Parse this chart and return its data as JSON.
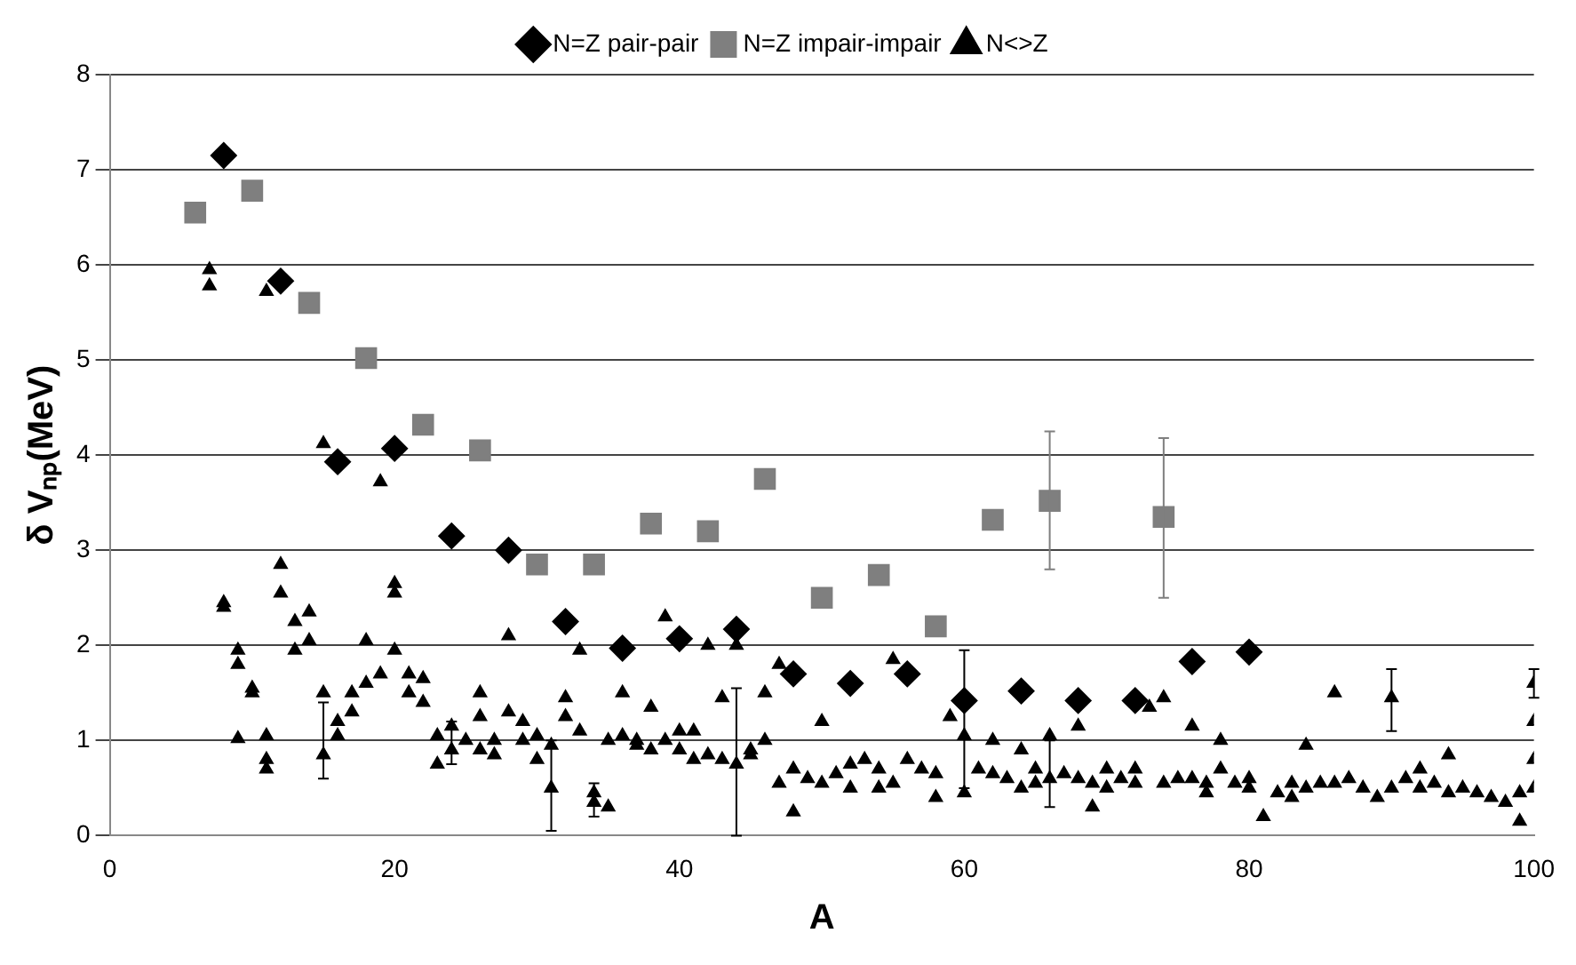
{
  "chart_data": {
    "type": "scatter",
    "xlabel": "A",
    "ylabel": "δ Vₙₚ(MeV)",
    "xlim": [
      0,
      100
    ],
    "xticks": [
      0,
      20,
      40,
      60,
      80,
      100
    ],
    "ylim": [
      0,
      8
    ],
    "yticks": [
      0,
      1,
      2,
      3,
      4,
      5,
      6,
      7,
      8
    ],
    "grid": "y",
    "legend": "top",
    "series": [
      {
        "name": "N=Z pair-pair",
        "color": "#000000",
        "marker": "diamond",
        "x": [
          8,
          12,
          16,
          20,
          24,
          28,
          32,
          36,
          40,
          44,
          48,
          52,
          56,
          60,
          64,
          68,
          72,
          76,
          80
        ],
        "values": [
          7.15,
          5.83,
          3.93,
          4.07,
          3.15,
          3.0,
          2.25,
          1.97,
          2.07,
          2.17,
          1.7,
          1.6,
          1.7,
          1.42,
          1.52,
          1.42,
          1.42,
          1.83,
          1.93
        ]
      },
      {
        "name": "N=Z impair-impair",
        "color": "#7f7f7f",
        "marker": "square",
        "x": [
          6,
          10,
          14,
          18,
          22,
          26,
          30,
          34,
          38,
          42,
          46,
          50,
          54,
          58,
          62,
          66,
          74
        ],
        "values": [
          6.55,
          6.78,
          5.6,
          5.02,
          4.32,
          4.05,
          2.85,
          2.85,
          3.28,
          3.2,
          3.75,
          2.5,
          2.74,
          2.2,
          3.32,
          3.52,
          3.35
        ],
        "errors": [
          null,
          null,
          null,
          null,
          null,
          null,
          null,
          null,
          null,
          null,
          null,
          null,
          null,
          null,
          null,
          [
            2.8,
            4.25
          ],
          [
            2.5,
            4.18
          ]
        ]
      },
      {
        "name": "N<>Z",
        "color": "#000000",
        "marker": "triangle",
        "x": [
          7,
          7,
          8,
          8,
          9,
          9,
          9,
          10,
          10,
          11,
          11,
          11,
          11,
          12,
          12,
          13,
          13,
          14,
          14,
          15,
          15,
          15,
          16,
          16,
          17,
          17,
          18,
          18,
          19,
          19,
          20,
          20,
          20,
          21,
          21,
          22,
          22,
          23,
          23,
          24,
          24,
          25,
          26,
          26,
          26,
          27,
          27,
          28,
          28,
          29,
          29,
          30,
          30,
          31,
          31,
          32,
          32,
          33,
          33,
          34,
          34,
          35,
          35,
          36,
          36,
          37,
          37,
          38,
          38,
          39,
          39,
          40,
          40,
          41,
          41,
          42,
          42,
          43,
          43,
          44,
          44,
          45,
          45,
          46,
          46,
          47,
          47,
          48,
          48,
          50,
          50,
          52,
          52,
          54,
          54,
          55,
          56,
          58,
          58,
          59,
          60,
          60,
          62,
          62,
          64,
          64,
          66,
          66,
          68,
          68,
          70,
          70,
          72,
          72,
          73,
          74,
          74,
          76,
          76,
          78,
          78,
          80,
          80,
          81,
          82,
          84,
          84,
          86,
          86,
          88,
          89,
          90,
          90,
          92,
          92,
          94,
          94,
          96,
          98,
          99,
          100,
          100,
          100,
          100,
          49,
          51,
          53,
          55,
          57,
          61,
          63,
          65,
          67,
          69,
          71,
          75,
          77,
          79,
          83,
          85,
          87,
          91,
          93,
          95,
          97,
          99,
          65,
          69,
          77,
          83
        ],
        "values": [
          5.95,
          5.78,
          2.45,
          2.4,
          1.95,
          1.8,
          1.02,
          1.55,
          1.5,
          5.72,
          1.05,
          0.8,
          0.7,
          2.85,
          2.55,
          2.25,
          1.95,
          2.35,
          2.05,
          4.12,
          1.5,
          0.85,
          1.2,
          1.05,
          1.5,
          1.3,
          2.05,
          1.6,
          3.72,
          1.7,
          2.65,
          2.55,
          1.95,
          1.7,
          1.5,
          1.65,
          1.4,
          1.05,
          0.75,
          1.15,
          0.9,
          1.0,
          1.5,
          1.25,
          0.9,
          1.0,
          0.85,
          2.1,
          1.3,
          1.2,
          1.0,
          1.05,
          0.8,
          0.5,
          0.95,
          1.45,
          1.25,
          1.1,
          1.95,
          0.35,
          0.45,
          0.3,
          1.0,
          1.5,
          1.05,
          1.0,
          0.95,
          1.35,
          0.9,
          2.3,
          1.0,
          1.1,
          0.9,
          1.1,
          0.8,
          2.0,
          0.85,
          1.45,
          0.8,
          2.0,
          0.75,
          0.9,
          0.85,
          1.5,
          1.0,
          1.8,
          0.55,
          0.25,
          0.7,
          1.2,
          0.55,
          0.75,
          0.5,
          0.7,
          0.5,
          1.85,
          0.8,
          0.65,
          0.4,
          1.25,
          1.05,
          0.45,
          0.65,
          1.0,
          0.9,
          0.5,
          1.05,
          0.6,
          1.15,
          0.6,
          0.5,
          0.7,
          0.55,
          0.7,
          1.35,
          1.45,
          0.55,
          1.15,
          0.6,
          0.7,
          1.0,
          0.6,
          0.5,
          0.2,
          0.45,
          0.95,
          0.5,
          1.5,
          0.55,
          0.5,
          0.4,
          1.45,
          0.5,
          0.7,
          0.5,
          0.45,
          0.85,
          0.45,
          0.35,
          0.15,
          1.6,
          1.2,
          0.8,
          0.5,
          0.6,
          0.65,
          0.8,
          0.55,
          0.7,
          0.7,
          0.6,
          0.55,
          0.65,
          0.55,
          0.6,
          0.6,
          0.55,
          0.55,
          0.55,
          0.55,
          0.6,
          0.6,
          0.55,
          0.5,
          0.4,
          0.45,
          0.7,
          0.3,
          0.45,
          0.4
        ],
        "errors": [
          null,
          null,
          null,
          null,
          null,
          null,
          null,
          null,
          null,
          null,
          null,
          null,
          null,
          null,
          null,
          null,
          null,
          null,
          null,
          null,
          null,
          [
            0.6,
            1.4
          ],
          null,
          null,
          null,
          null,
          null,
          null,
          null,
          null,
          null,
          null,
          null,
          null,
          null,
          null,
          null,
          null,
          null,
          null,
          [
            0.75,
            1.2
          ],
          null,
          null,
          null,
          null,
          null,
          null,
          null,
          null,
          null,
          null,
          null,
          null,
          [
            0.05,
            1.0
          ],
          null,
          null,
          null,
          null,
          null,
          [
            0.2,
            0.55
          ],
          null,
          null,
          null,
          null,
          null,
          null,
          null,
          null,
          null,
          null,
          null,
          null,
          null,
          null,
          null,
          null,
          null,
          null,
          null,
          null,
          [
            0.0,
            1.55
          ],
          null,
          null,
          null,
          null,
          null,
          null,
          null,
          null,
          null,
          null,
          null,
          null,
          null,
          null,
          null,
          null,
          null,
          null,
          null,
          [
            0.5,
            1.95
          ],
          null,
          null,
          null,
          null,
          null,
          null,
          [
            0.3,
            1.0
          ],
          null,
          null,
          null,
          null,
          null,
          null,
          null,
          null,
          null,
          null,
          null,
          null,
          null,
          null,
          null,
          null,
          null,
          null,
          null,
          null,
          null,
          null,
          null,
          [
            1.1,
            1.75
          ],
          null,
          null,
          null,
          null,
          null,
          null,
          null,
          null,
          [
            1.45,
            1.75
          ],
          null,
          null,
          null,
          null,
          null,
          null,
          null,
          null,
          null,
          null,
          null,
          null,
          null,
          null,
          null,
          null,
          null,
          null,
          null,
          null,
          null,
          null,
          null,
          null,
          null,
          null,
          null,
          null,
          null
        ]
      }
    ]
  }
}
